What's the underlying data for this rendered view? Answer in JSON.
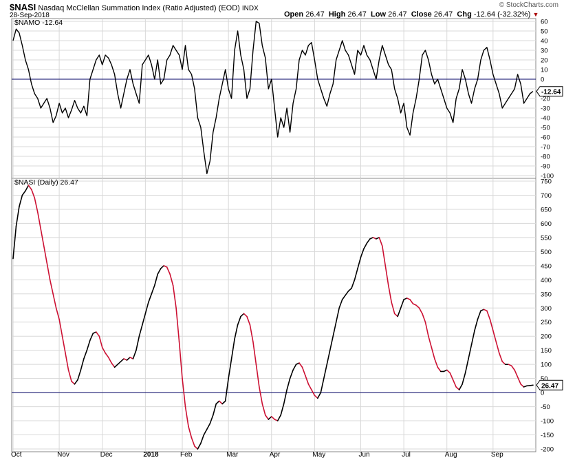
{
  "header": {
    "symbol": "$NASI",
    "name": "Nasdaq McClellan Summation Index (Ratio Adjusted) (EOD)",
    "exchange": "INDX",
    "date": "28-Sep-2018",
    "watermark": "© StockCharts.com",
    "quote": {
      "open_label": "Open",
      "open": "26.47",
      "high_label": "High",
      "high": "26.47",
      "low_label": "Low",
      "low": "26.47",
      "close_label": "Close",
      "close": "26.47",
      "chg_label": "Chg",
      "chg": "-12.64 (-32.32%)",
      "chg_marker": "▼"
    }
  },
  "colors": {
    "line_black": "#000000",
    "line_red": "#cc1133",
    "zero_line": "#000066",
    "grid": "#d8d8d8",
    "axis_text": "#000000"
  },
  "chart_data": [
    {
      "type": "line",
      "legend": "$NAMO -12.64",
      "series": [
        {
          "name": "$NAMO"
        }
      ],
      "last_value_label": "-12.64",
      "ylim": [
        -100,
        60
      ],
      "yticks": [
        "60",
        "50",
        "40",
        "30",
        "20",
        "10",
        "0",
        "-10",
        "-20",
        "-30",
        "-40",
        "-50",
        "-60",
        "-70",
        "-80",
        "-90",
        "-100"
      ],
      "ytick_values": [
        60,
        50,
        40,
        30,
        20,
        10,
        0,
        -10,
        -20,
        -30,
        -40,
        -50,
        -60,
        -70,
        -80,
        -90,
        -100
      ],
      "reference_line": 0,
      "grid": true,
      "points": [
        [
          0,
          40
        ],
        [
          1,
          52
        ],
        [
          2,
          48
        ],
        [
          3,
          35
        ],
        [
          4,
          20
        ],
        [
          5,
          10
        ],
        [
          6,
          -5
        ],
        [
          7,
          -15
        ],
        [
          8,
          -20
        ],
        [
          9,
          -30
        ],
        [
          10,
          -25
        ],
        [
          11,
          -20
        ],
        [
          12,
          -30
        ],
        [
          13,
          -45
        ],
        [
          14,
          -38
        ],
        [
          15,
          -25
        ],
        [
          16,
          -35
        ],
        [
          17,
          -30
        ],
        [
          18,
          -40
        ],
        [
          19,
          -32
        ],
        [
          20,
          -22
        ],
        [
          21,
          -30
        ],
        [
          22,
          -35
        ],
        [
          23,
          -28
        ],
        [
          24,
          -38
        ],
        [
          25,
          0
        ],
        [
          26,
          10
        ],
        [
          27,
          20
        ],
        [
          28,
          25
        ],
        [
          29,
          15
        ],
        [
          30,
          25
        ],
        [
          31,
          22
        ],
        [
          32,
          15
        ],
        [
          33,
          5
        ],
        [
          34,
          -15
        ],
        [
          35,
          -30
        ],
        [
          36,
          -15
        ],
        [
          37,
          0
        ],
        [
          38,
          10
        ],
        [
          39,
          -5
        ],
        [
          40,
          -15
        ],
        [
          41,
          -25
        ],
        [
          42,
          15
        ],
        [
          43,
          20
        ],
        [
          44,
          25
        ],
        [
          45,
          15
        ],
        [
          46,
          0
        ],
        [
          47,
          20
        ],
        [
          48,
          -5
        ],
        [
          49,
          0
        ],
        [
          50,
          20
        ],
        [
          51,
          25
        ],
        [
          52,
          35
        ],
        [
          53,
          30
        ],
        [
          54,
          25
        ],
        [
          55,
          10
        ],
        [
          56,
          35
        ],
        [
          57,
          10
        ],
        [
          58,
          5
        ],
        [
          59,
          -10
        ],
        [
          60,
          -40
        ],
        [
          61,
          -50
        ],
        [
          62,
          -75
        ],
        [
          63,
          -98
        ],
        [
          64,
          -85
        ],
        [
          65,
          -55
        ],
        [
          66,
          -40
        ],
        [
          67,
          -20
        ],
        [
          68,
          -5
        ],
        [
          69,
          10
        ],
        [
          70,
          -10
        ],
        [
          71,
          -20
        ],
        [
          72,
          30
        ],
        [
          73,
          50
        ],
        [
          74,
          25
        ],
        [
          75,
          10
        ],
        [
          76,
          -20
        ],
        [
          77,
          -10
        ],
        [
          78,
          30
        ],
        [
          79,
          60
        ],
        [
          80,
          58
        ],
        [
          81,
          35
        ],
        [
          82,
          22
        ],
        [
          83,
          -10
        ],
        [
          84,
          0
        ],
        [
          85,
          -30
        ],
        [
          86,
          -60
        ],
        [
          87,
          -40
        ],
        [
          88,
          -50
        ],
        [
          89,
          -30
        ],
        [
          90,
          -55
        ],
        [
          91,
          -25
        ],
        [
          92,
          -10
        ],
        [
          93,
          20
        ],
        [
          94,
          30
        ],
        [
          95,
          25
        ],
        [
          96,
          35
        ],
        [
          97,
          38
        ],
        [
          98,
          20
        ],
        [
          99,
          0
        ],
        [
          100,
          -10
        ],
        [
          101,
          -20
        ],
        [
          102,
          -28
        ],
        [
          103,
          -15
        ],
        [
          104,
          -5
        ],
        [
          105,
          20
        ],
        [
          106,
          30
        ],
        [
          107,
          40
        ],
        [
          108,
          30
        ],
        [
          109,
          25
        ],
        [
          110,
          15
        ],
        [
          111,
          5
        ],
        [
          112,
          30
        ],
        [
          113,
          25
        ],
        [
          114,
          35
        ],
        [
          115,
          25
        ],
        [
          116,
          20
        ],
        [
          117,
          10
        ],
        [
          118,
          0
        ],
        [
          119,
          20
        ],
        [
          120,
          35
        ],
        [
          121,
          25
        ],
        [
          122,
          15
        ],
        [
          123,
          10
        ],
        [
          124,
          -10
        ],
        [
          125,
          -20
        ],
        [
          126,
          -35
        ],
        [
          127,
          -25
        ],
        [
          128,
          -50
        ],
        [
          129,
          -58
        ],
        [
          130,
          -35
        ],
        [
          131,
          -20
        ],
        [
          132,
          0
        ],
        [
          133,
          25
        ],
        [
          134,
          30
        ],
        [
          135,
          20
        ],
        [
          136,
          5
        ],
        [
          137,
          -5
        ],
        [
          138,
          0
        ],
        [
          139,
          -10
        ],
        [
          140,
          -20
        ],
        [
          141,
          -30
        ],
        [
          142,
          -35
        ],
        [
          143,
          -45
        ],
        [
          144,
          -20
        ],
        [
          145,
          -10
        ],
        [
          146,
          10
        ],
        [
          147,
          0
        ],
        [
          148,
          -15
        ],
        [
          149,
          -25
        ],
        [
          150,
          -10
        ],
        [
          151,
          0
        ],
        [
          152,
          20
        ],
        [
          153,
          30
        ],
        [
          154,
          33
        ],
        [
          155,
          20
        ],
        [
          156,
          5
        ],
        [
          157,
          -5
        ],
        [
          158,
          -15
        ],
        [
          159,
          -30
        ],
        [
          160,
          -25
        ],
        [
          161,
          -20
        ],
        [
          162,
          -15
        ],
        [
          163,
          -10
        ],
        [
          164,
          5
        ],
        [
          165,
          -5
        ],
        [
          166,
          -25
        ],
        [
          167,
          -20
        ],
        [
          168,
          -15
        ],
        [
          169,
          -12.64
        ]
      ]
    },
    {
      "type": "line",
      "legend": "$NASI (Daily) 26.47",
      "series": [
        {
          "name": "$NASI"
        }
      ],
      "last_value_label": "26.47",
      "ylim": [
        -200,
        750
      ],
      "yticks": [
        "750",
        "700",
        "650",
        "600",
        "550",
        "500",
        "450",
        "400",
        "350",
        "300",
        "250",
        "200",
        "150",
        "100",
        "50",
        "0",
        "-50",
        "-100",
        "-150",
        "-200"
      ],
      "ytick_values": [
        750,
        700,
        650,
        600,
        550,
        500,
        450,
        400,
        350,
        300,
        250,
        200,
        150,
        100,
        50,
        0,
        -50,
        -100,
        -150,
        -200
      ],
      "reference_line": 0,
      "grid": true,
      "colored_by_direction": true,
      "points": [
        [
          0,
          475
        ],
        [
          1,
          590
        ],
        [
          2,
          660
        ],
        [
          3,
          700
        ],
        [
          4,
          715
        ],
        [
          5,
          735
        ],
        [
          6,
          720
        ],
        [
          7,
          690
        ],
        [
          8,
          640
        ],
        [
          9,
          580
        ],
        [
          10,
          520
        ],
        [
          11,
          460
        ],
        [
          12,
          400
        ],
        [
          13,
          350
        ],
        [
          14,
          300
        ],
        [
          15,
          260
        ],
        [
          16,
          200
        ],
        [
          17,
          140
        ],
        [
          18,
          80
        ],
        [
          19,
          40
        ],
        [
          20,
          30
        ],
        [
          21,
          45
        ],
        [
          22,
          80
        ],
        [
          23,
          120
        ],
        [
          24,
          150
        ],
        [
          25,
          185
        ],
        [
          26,
          210
        ],
        [
          27,
          215
        ],
        [
          28,
          200
        ],
        [
          29,
          160
        ],
        [
          30,
          140
        ],
        [
          31,
          125
        ],
        [
          32,
          105
        ],
        [
          33,
          90
        ],
        [
          34,
          100
        ],
        [
          35,
          110
        ],
        [
          36,
          120
        ],
        [
          37,
          115
        ],
        [
          38,
          125
        ],
        [
          39,
          120
        ],
        [
          40,
          150
        ],
        [
          41,
          200
        ],
        [
          42,
          240
        ],
        [
          43,
          280
        ],
        [
          44,
          320
        ],
        [
          45,
          350
        ],
        [
          46,
          380
        ],
        [
          47,
          420
        ],
        [
          48,
          440
        ],
        [
          49,
          450
        ],
        [
          50,
          445
        ],
        [
          51,
          420
        ],
        [
          52,
          380
        ],
        [
          53,
          300
        ],
        [
          54,
          180
        ],
        [
          55,
          50
        ],
        [
          56,
          -50
        ],
        [
          57,
          -120
        ],
        [
          58,
          -160
        ],
        [
          59,
          -190
        ],
        [
          60,
          -200
        ],
        [
          61,
          -180
        ],
        [
          62,
          -150
        ],
        [
          63,
          -130
        ],
        [
          64,
          -110
        ],
        [
          65,
          -80
        ],
        [
          66,
          -40
        ],
        [
          67,
          -30
        ],
        [
          68,
          -40
        ],
        [
          69,
          -30
        ],
        [
          70,
          50
        ],
        [
          71,
          120
        ],
        [
          72,
          190
        ],
        [
          73,
          240
        ],
        [
          74,
          270
        ],
        [
          75,
          280
        ],
        [
          76,
          270
        ],
        [
          77,
          240
        ],
        [
          78,
          180
        ],
        [
          79,
          100
        ],
        [
          80,
          20
        ],
        [
          81,
          -40
        ],
        [
          82,
          -80
        ],
        [
          83,
          -95
        ],
        [
          84,
          -85
        ],
        [
          85,
          -95
        ],
        [
          86,
          -100
        ],
        [
          87,
          -80
        ],
        [
          88,
          -40
        ],
        [
          89,
          10
        ],
        [
          90,
          50
        ],
        [
          91,
          80
        ],
        [
          92,
          100
        ],
        [
          93,
          105
        ],
        [
          94,
          90
        ],
        [
          95,
          60
        ],
        [
          96,
          30
        ],
        [
          97,
          10
        ],
        [
          98,
          -10
        ],
        [
          99,
          -20
        ],
        [
          100,
          0
        ],
        [
          101,
          50
        ],
        [
          102,
          100
        ],
        [
          103,
          150
        ],
        [
          104,
          200
        ],
        [
          105,
          250
        ],
        [
          106,
          300
        ],
        [
          107,
          330
        ],
        [
          108,
          345
        ],
        [
          109,
          360
        ],
        [
          110,
          370
        ],
        [
          111,
          400
        ],
        [
          112,
          440
        ],
        [
          113,
          480
        ],
        [
          114,
          510
        ],
        [
          115,
          530
        ],
        [
          116,
          545
        ],
        [
          117,
          550
        ],
        [
          118,
          545
        ],
        [
          119,
          550
        ],
        [
          120,
          520
        ],
        [
          121,
          450
        ],
        [
          122,
          380
        ],
        [
          123,
          320
        ],
        [
          124,
          280
        ],
        [
          125,
          270
        ],
        [
          126,
          300
        ],
        [
          127,
          330
        ],
        [
          128,
          335
        ],
        [
          129,
          330
        ],
        [
          130,
          315
        ],
        [
          131,
          310
        ],
        [
          132,
          300
        ],
        [
          133,
          280
        ],
        [
          134,
          250
        ],
        [
          135,
          200
        ],
        [
          136,
          160
        ],
        [
          137,
          120
        ],
        [
          138,
          90
        ],
        [
          139,
          75
        ],
        [
          140,
          75
        ],
        [
          141,
          80
        ],
        [
          142,
          70
        ],
        [
          143,
          45
        ],
        [
          144,
          20
        ],
        [
          145,
          10
        ],
        [
          146,
          30
        ],
        [
          147,
          70
        ],
        [
          148,
          120
        ],
        [
          149,
          170
        ],
        [
          150,
          220
        ],
        [
          151,
          260
        ],
        [
          152,
          290
        ],
        [
          153,
          295
        ],
        [
          154,
          290
        ],
        [
          155,
          260
        ],
        [
          156,
          220
        ],
        [
          157,
          180
        ],
        [
          158,
          140
        ],
        [
          159,
          110
        ],
        [
          160,
          100
        ],
        [
          161,
          100
        ],
        [
          162,
          95
        ],
        [
          163,
          80
        ],
        [
          164,
          55
        ],
        [
          165,
          30
        ],
        [
          166,
          20
        ],
        [
          167,
          24
        ],
        [
          168,
          25
        ],
        [
          169,
          26.47
        ]
      ]
    }
  ],
  "x_axis": {
    "ticks": [
      {
        "label": "Oct",
        "i": 0
      },
      {
        "label": "Nov",
        "i": 15
      },
      {
        "label": "Dec",
        "i": 29
      },
      {
        "label": "2018",
        "i": 43,
        "bold": true
      },
      {
        "label": "Feb",
        "i": 55
      },
      {
        "label": "Mar",
        "i": 70
      },
      {
        "label": "Apr",
        "i": 84
      },
      {
        "label": "May",
        "i": 98
      },
      {
        "label": "Jun",
        "i": 113
      },
      {
        "label": "Jul",
        "i": 127
      },
      {
        "label": "Aug",
        "i": 141
      },
      {
        "label": "Sep",
        "i": 156
      }
    ]
  }
}
